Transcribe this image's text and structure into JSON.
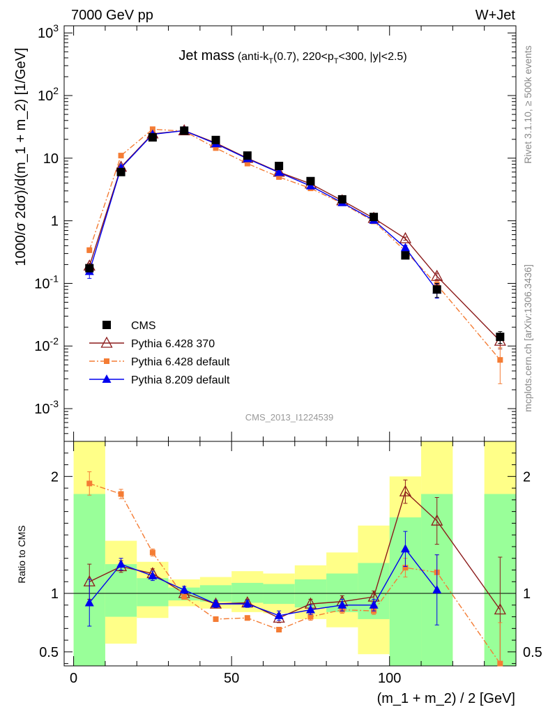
{
  "header": {
    "left": "7000 GeV pp",
    "right": "W+Jet"
  },
  "title": {
    "main": "Jet mass",
    "sub_pre": " (anti-k",
    "sub_T1": "T",
    "sub_mid": "(0.7), 220<p",
    "sub_T2": "T",
    "sub_post": "<300, |y|<2.5)"
  },
  "side_labels": {
    "rivet": "Rivet 3.1.10, ≥ 500k events",
    "mcplots": "mcplots.cern.ch [arXiv:1306.3436]"
  },
  "analysis_tag": "CMS_2013_I1224539",
  "chart_data": [
    {
      "type": "line",
      "panel": "main",
      "ylabel": "1000/σ 2dσ)/d(m_1 + m_2) [1/GeV]",
      "yscale": "log",
      "ylim": [
        0.0003,
        1300
      ],
      "xlim": [
        -3,
        140
      ],
      "y_ticks": [
        {
          "base": "10",
          "exp": "-3",
          "v": 0.001
        },
        {
          "base": "10",
          "exp": "-2",
          "v": 0.01
        },
        {
          "base": "10",
          "exp": "-1",
          "v": 0.1
        },
        {
          "base": "1",
          "exp": "",
          "v": 1
        },
        {
          "base": "10",
          "exp": "",
          "v": 10
        },
        {
          "base": "10",
          "exp": "2",
          "v": 100
        },
        {
          "base": "10",
          "exp": "3",
          "v": 1000
        }
      ],
      "legend_position": "bottom-left",
      "series": [
        {
          "name": "CMS",
          "color": "#000000",
          "marker": "square",
          "x": [
            5,
            15,
            25,
            35,
            45,
            55,
            65,
            75,
            85,
            95,
            105,
            115,
            135
          ],
          "y": [
            0.175,
            6.0,
            21.5,
            27.5,
            19.5,
            11.0,
            7.5,
            4.3,
            2.2,
            1.15,
            0.28,
            0.08,
            0.014
          ],
          "err": [
            0.02,
            0.5,
            1.5,
            1.5,
            1.2,
            0.8,
            0.5,
            0.3,
            0.15,
            0.1,
            0.03,
            0.02,
            0.003
          ]
        },
        {
          "name": "Pythia 6.428 370",
          "color": "#8b1a1a",
          "marker": "triangle-open",
          "dash": "",
          "x": [
            5,
            15,
            25,
            35,
            45,
            55,
            65,
            75,
            85,
            95,
            105,
            115,
            135
          ],
          "y": [
            0.19,
            7.2,
            24.5,
            27.5,
            17.5,
            10.0,
            6.0,
            3.9,
            2.1,
            1.1,
            0.52,
            0.13,
            0.012
          ],
          "err": [
            0.02,
            0.3,
            0.6,
            0.6,
            0.4,
            0.25,
            0.15,
            0.1,
            0.06,
            0.04,
            0.03,
            0.015,
            0.003
          ]
        },
        {
          "name": "Pythia 6.428 default",
          "color": "#f47c34",
          "marker": "square-small",
          "dash": "8,3,2,3",
          "x": [
            5,
            15,
            25,
            35,
            45,
            55,
            65,
            75,
            85,
            95,
            105,
            115,
            135
          ],
          "y": [
            0.34,
            11.0,
            29.0,
            27.0,
            14.5,
            8.2,
            5.0,
            3.3,
            1.9,
            0.98,
            0.33,
            0.095,
            0.006
          ],
          "err": [
            0.03,
            0.3,
            0.6,
            0.6,
            0.35,
            0.2,
            0.12,
            0.08,
            0.05,
            0.03,
            0.02,
            0.012,
            0.0035
          ]
        },
        {
          "name": "Pythia 8.209 default",
          "color": "#0000ee",
          "marker": "triangle",
          "dash": "",
          "x": [
            5,
            15,
            25,
            35,
            45,
            55,
            65,
            75,
            85,
            95,
            105,
            115
          ],
          "y": [
            0.155,
            7.0,
            24.0,
            27.5,
            17.0,
            9.8,
            5.9,
            3.6,
            1.95,
            1.02,
            0.37,
            0.078
          ],
          "err": [
            0.035,
            0.3,
            0.6,
            0.6,
            0.4,
            0.25,
            0.15,
            0.1,
            0.06,
            0.04,
            0.035,
            0.02
          ]
        }
      ]
    },
    {
      "type": "line",
      "panel": "ratio",
      "xlabel": "(m_1 + m_2) / 2 [GeV]",
      "ylabel": "Ratio to CMS",
      "ylim": [
        0.38,
        2.3
      ],
      "xlim": [
        -3,
        140
      ],
      "x_ticks": [
        0,
        50,
        100
      ],
      "y_ticks": [
        0.5,
        1,
        2
      ],
      "bands": [
        {
          "x0": 0,
          "x1": 10,
          "g": [
            0.35,
            1.85
          ],
          "y": [
            0.35,
            2.3
          ]
        },
        {
          "x0": 10,
          "x1": 20,
          "g": [
            0.8,
            1.25
          ],
          "y": [
            0.57,
            1.45
          ]
        },
        {
          "x0": 20,
          "x1": 30,
          "g": [
            0.89,
            1.13
          ],
          "y": [
            0.79,
            1.27
          ]
        },
        {
          "x0": 30,
          "x1": 40,
          "g": [
            0.94,
            1.05
          ],
          "y": [
            0.89,
            1.12
          ]
        },
        {
          "x0": 40,
          "x1": 50,
          "g": [
            0.93,
            1.07
          ],
          "y": [
            0.87,
            1.14
          ]
        },
        {
          "x0": 50,
          "x1": 60,
          "g": [
            0.92,
            1.09
          ],
          "y": [
            0.84,
            1.19
          ]
        },
        {
          "x0": 60,
          "x1": 70,
          "g": [
            0.91,
            1.08
          ],
          "y": [
            0.83,
            1.17
          ]
        },
        {
          "x0": 70,
          "x1": 80,
          "g": [
            0.88,
            1.12
          ],
          "y": [
            0.78,
            1.24
          ]
        },
        {
          "x0": 80,
          "x1": 90,
          "g": [
            0.84,
            1.17
          ],
          "y": [
            0.71,
            1.35
          ]
        },
        {
          "x0": 90,
          "x1": 100,
          "g": [
            0.78,
            1.26
          ],
          "y": [
            0.48,
            1.58
          ]
        },
        {
          "x0": 100,
          "x1": 110,
          "g": [
            0.35,
            1.65
          ],
          "y": [
            0.35,
            2.0
          ]
        },
        {
          "x0": 110,
          "x1": 120,
          "g": [
            0.35,
            1.85
          ],
          "y": [
            0.35,
            2.3
          ]
        },
        {
          "x0": 130,
          "x1": 140,
          "g": [
            0.35,
            1.85
          ],
          "y": [
            0.35,
            2.3
          ]
        }
      ],
      "series": [
        {
          "name": "Pythia 6.428 370",
          "color": "#8b1a1a",
          "marker": "triangle-open",
          "dash": "",
          "x": [
            5,
            15,
            25,
            35,
            45,
            55,
            65,
            75,
            85,
            95,
            105,
            115,
            135
          ],
          "y": [
            1.1,
            1.23,
            1.17,
            1.0,
            0.91,
            0.92,
            0.79,
            0.91,
            0.93,
            0.97,
            1.87,
            1.62,
            0.86
          ],
          "err": [
            0.15,
            0.05,
            0.04,
            0.03,
            0.03,
            0.03,
            0.04,
            0.04,
            0.05,
            0.05,
            0.1,
            0.2,
            0.45
          ]
        },
        {
          "name": "Pythia 6.428 default",
          "color": "#f47c34",
          "marker": "square-small",
          "dash": "8,3,2,3",
          "x": [
            5,
            15,
            25,
            35,
            45,
            55,
            65,
            75,
            85,
            95,
            105,
            115,
            135
          ],
          "y": [
            1.94,
            1.85,
            1.35,
            0.97,
            0.78,
            0.79,
            0.69,
            0.8,
            0.86,
            0.85,
            1.22,
            1.18,
            0.4
          ],
          "err": [
            0.1,
            0.04,
            0.03,
            0.02,
            0.02,
            0.02,
            0.02,
            0.03,
            0.03,
            0.03,
            0.08,
            0.15,
            0.35
          ]
        },
        {
          "name": "Pythia 8.209 default",
          "color": "#0000ee",
          "marker": "triangle",
          "dash": "",
          "x": [
            5,
            15,
            25,
            35,
            45,
            55,
            65,
            75,
            85,
            95,
            105,
            115
          ],
          "y": [
            0.92,
            1.25,
            1.15,
            1.03,
            0.91,
            0.91,
            0.81,
            0.86,
            0.9,
            0.9,
            1.38,
            1.03
          ],
          "err": [
            0.2,
            0.05,
            0.04,
            0.03,
            0.03,
            0.03,
            0.04,
            0.04,
            0.05,
            0.05,
            0.15,
            0.3
          ]
        }
      ]
    }
  ]
}
